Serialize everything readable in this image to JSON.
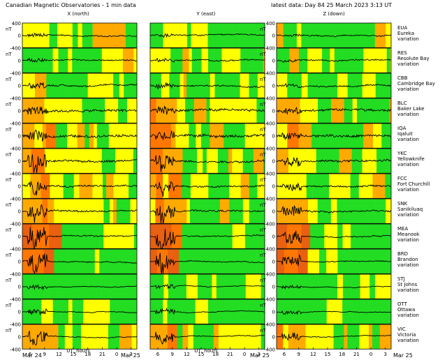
{
  "chart_data": {
    "type": "line",
    "title": "Canadian Magnetic Observatories - 1 min data",
    "latest": "latest data: Day  84   25 March 2023   3:13 UT",
    "columns": [
      "X (north)",
      "Y (east)",
      "Z (down)"
    ],
    "ylabel": "nT",
    "y_ticks": [
      "400",
      "0",
      "-400"
    ],
    "ylim": [
      -400,
      400
    ],
    "xlabel": "UT, hours",
    "x_ticks": [
      "6",
      "9",
      "12",
      "15",
      "18",
      "21",
      "0",
      "3"
    ],
    "x_range_hours": [
      4.4,
      28.2
    ],
    "date_left": "Mar 24",
    "date_right": "Mar 25",
    "activity_colors": {
      "quiet": "#22dd22",
      "unsettled": "#ffff00",
      "active": "#ffaa00",
      "storm": "#ff7700",
      "major": "#e86010"
    },
    "stations": [
      {
        "code": "EUA",
        "name": "Eureka",
        "suffix": "variation",
        "level": 1,
        "noise": 0.25,
        "storm": 0.4
      },
      {
        "code": "RES",
        "name": "Resolute Bay",
        "suffix": "variation",
        "level": 1,
        "noise": 0.3,
        "storm": 0.4
      },
      {
        "code": "CBB",
        "name": "Cambridge Bay",
        "suffix": "variation",
        "level": 1,
        "noise": 0.35,
        "storm": 0.6
      },
      {
        "code": "BLC",
        "name": "Baker Lake",
        "suffix": "variation",
        "level": 2,
        "noise": 0.6,
        "storm": 0.9
      },
      {
        "code": "IQA",
        "name": "Iqaluit",
        "suffix": "variation",
        "level": 2,
        "noise": 0.6,
        "storm": 1.2
      },
      {
        "code": "YKC",
        "name": "Yellowknife",
        "suffix": "variation",
        "level": 2,
        "noise": 0.5,
        "storm": 1.6
      },
      {
        "code": "FCC",
        "name": "Fort Churchill",
        "suffix": "variation",
        "level": 2,
        "noise": 0.4,
        "storm": 1.3
      },
      {
        "code": "SNK",
        "name": "Sanikiluaq",
        "suffix": "variation",
        "level": 2,
        "noise": 0.4,
        "storm": 1.7
      },
      {
        "code": "MEA",
        "name": "Meanook",
        "suffix": "variation",
        "level": 3,
        "noise": 0.25,
        "storm": 2.4
      },
      {
        "code": "BRD",
        "name": "Brandon",
        "suffix": "variation",
        "level": 3,
        "noise": 0.2,
        "storm": 2.0
      },
      {
        "code": "STJ",
        "name": "St Johns",
        "suffix": "variation",
        "level": 0,
        "noise": 0.1,
        "storm": 0.5
      },
      {
        "code": "OTT",
        "name": "Ottawa",
        "suffix": "variation",
        "level": 0,
        "noise": 0.1,
        "storm": 0.7
      },
      {
        "code": "VIC",
        "name": "Victoria",
        "suffix": "variation",
        "level": 2,
        "noise": 0.15,
        "storm": 1.4
      }
    ]
  }
}
